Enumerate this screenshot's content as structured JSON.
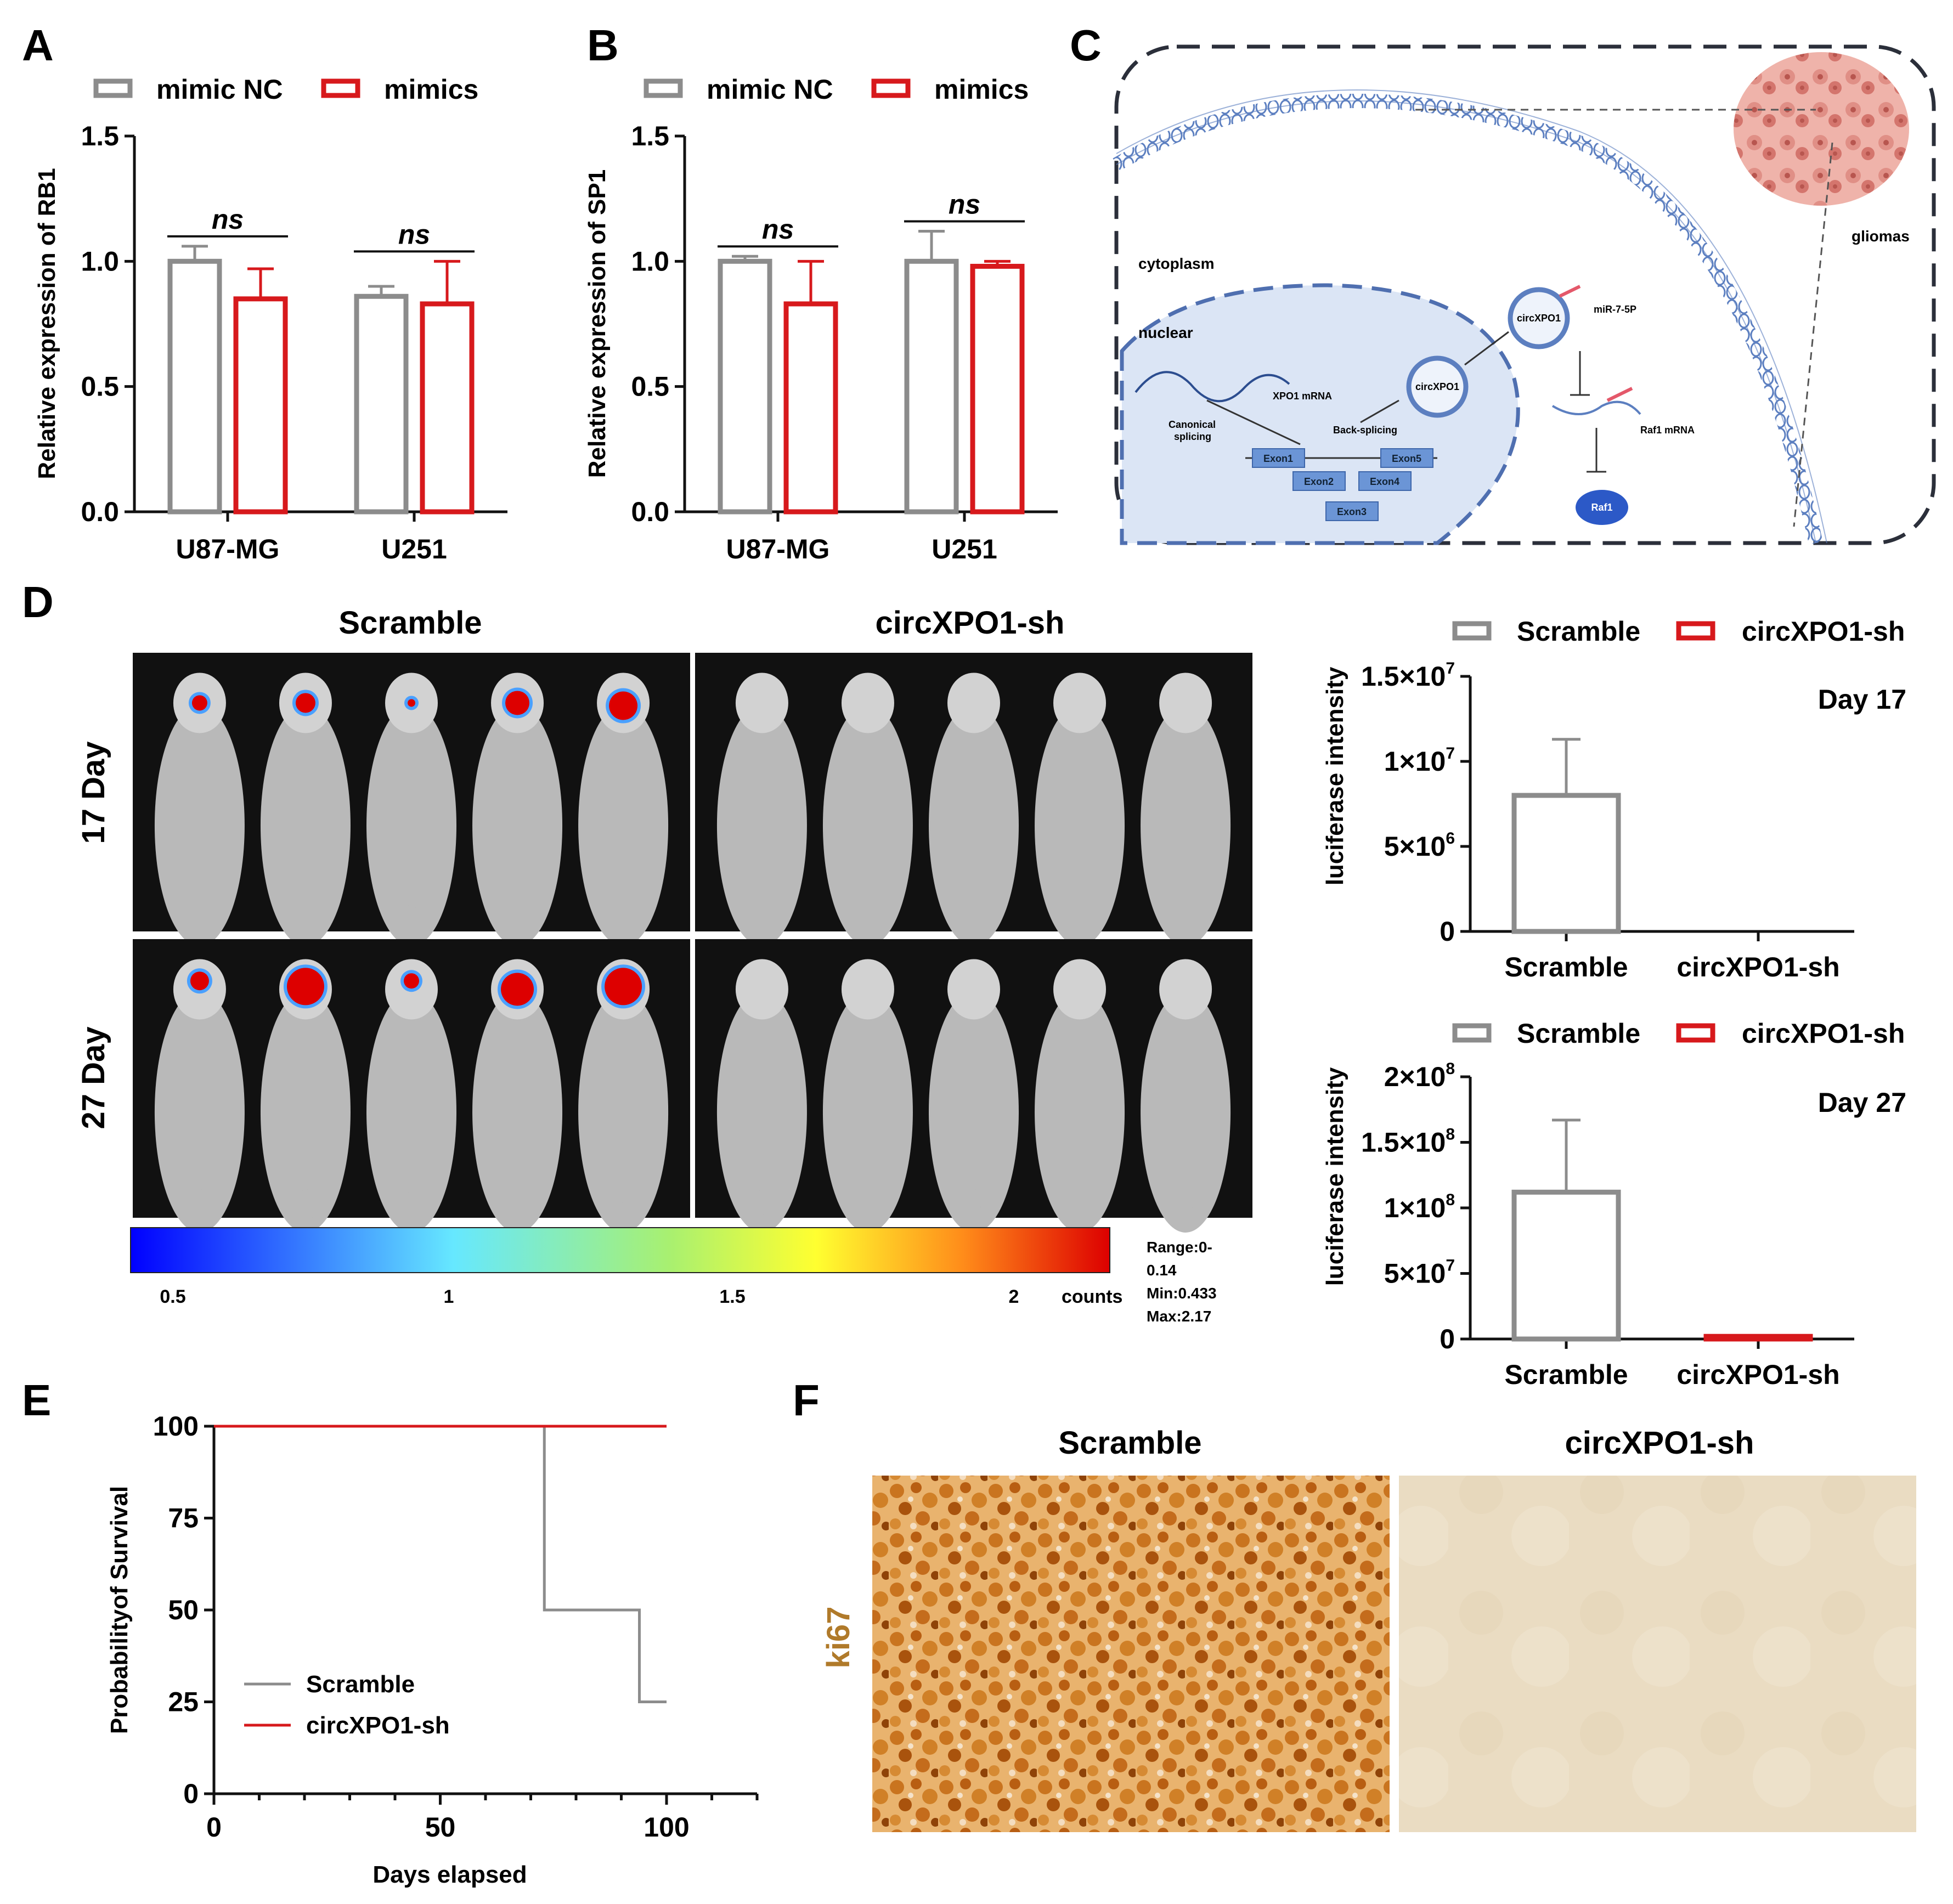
{
  "panel_labels": [
    "A",
    "B",
    "C",
    "D",
    "E",
    "F"
  ],
  "colors": {
    "gray": "#8c8c8c",
    "red": "#d7191c",
    "black": "#111111",
    "cell_blue": "#dbe5f5",
    "membrane": "#5c7fc0"
  },
  "chart_data": [
    {
      "id": "A",
      "type": "bar",
      "categories": [
        "U87-MG",
        "U251"
      ],
      "series": [
        {
          "name": "mimic NC",
          "values": [
            1.0,
            0.86
          ],
          "err": [
            0.06,
            0.04
          ]
        },
        {
          "name": "mimics",
          "values": [
            0.85,
            0.83
          ],
          "err": [
            0.12,
            0.17
          ]
        }
      ],
      "ylabel": "Relative expression of RB1",
      "ylim": [
        0,
        1.5
      ],
      "yticks": [
        "0.0",
        "0.5",
        "1.0",
        "1.5"
      ],
      "annotations": [
        "ns",
        "ns"
      ],
      "legend": "top"
    },
    {
      "id": "B",
      "type": "bar",
      "categories": [
        "U87-MG",
        "U251"
      ],
      "series": [
        {
          "name": "mimic NC",
          "values": [
            1.0,
            1.0
          ],
          "err": [
            0.02,
            0.12
          ]
        },
        {
          "name": "mimics",
          "values": [
            0.83,
            0.98
          ],
          "err": [
            0.17,
            0.02
          ]
        }
      ],
      "ylabel": "Relative expression of SP1",
      "ylim": [
        0,
        1.5
      ],
      "yticks": [
        "0.0",
        "0.5",
        "1.0",
        "1.5"
      ],
      "annotations": [
        "ns",
        "ns"
      ],
      "legend": "top"
    },
    {
      "id": "D-day17",
      "type": "bar",
      "categories": [
        "Scramble",
        "circXPO1-sh"
      ],
      "series": [
        {
          "name": "Scramble",
          "values": [
            8000000,
            0
          ],
          "err": [
            3300000,
            0
          ]
        },
        {
          "name": "circXPO1-sh",
          "values": [
            0,
            0
          ],
          "err": [
            0,
            0
          ]
        }
      ],
      "ylabel": "luciferase intensity",
      "ylim": [
        0,
        15000000
      ],
      "yticks": [
        "0",
        "5×10",
        "1×10",
        "1.5×10"
      ],
      "ytick_exponents": [
        "",
        "6",
        "7",
        "7"
      ],
      "annotation": "Day 17",
      "legend": "top"
    },
    {
      "id": "D-day27",
      "type": "bar",
      "categories": [
        "Scramble",
        "circXPO1-sh"
      ],
      "series": [
        {
          "name": "Scramble",
          "values": [
            112000000,
            0
          ],
          "err": [
            55000000,
            0
          ]
        },
        {
          "name": "circXPO1-sh",
          "values": [
            0,
            2000000
          ],
          "err": [
            0,
            0
          ]
        }
      ],
      "ylabel": "luciferase intensity",
      "ylim": [
        0,
        200000000
      ],
      "yticks": [
        "0",
        "5×10",
        "1×10",
        "1.5×10",
        "2×10"
      ],
      "ytick_exponents": [
        "",
        "7",
        "8",
        "8",
        "8"
      ],
      "annotation": "Day 27",
      "legend": "top"
    },
    {
      "id": "E",
      "type": "line",
      "series": [
        {
          "name": "Scramble",
          "x": [
            0,
            73,
            73,
            94,
            94,
            100
          ],
          "y": [
            100,
            100,
            50,
            50,
            25,
            25
          ]
        },
        {
          "name": "circXPO1-sh",
          "x": [
            0,
            100
          ],
          "y": [
            100,
            100
          ]
        }
      ],
      "xlabel": "Days elapsed",
      "ylabel": "Probabilityof Survival",
      "xlim": [
        0,
        120
      ],
      "ylim": [
        0,
        100
      ],
      "xticks": [
        "0",
        "50",
        "100"
      ],
      "yticks": [
        "0",
        "25",
        "50",
        "75",
        "100"
      ],
      "legend": "bottom-left"
    }
  ],
  "panel_c": {
    "cytoplasm": "cytoplasm",
    "nuclear": "nuclear",
    "gliomas": "gliomas",
    "xpo1_mrna": "XPO1 mRNA",
    "canonical": "Canonical",
    "splicing": "splicing",
    "back_splicing": "Back-splicing",
    "circ1": "circXPO1",
    "circ2": "circXPO1",
    "mir": "miR-7-5P",
    "raf1_mrna": "Raf1 mRNA",
    "raf1": "Raf1",
    "exons": [
      "Exon1",
      "Exon2",
      "Exon3",
      "Exon4",
      "Exon5"
    ]
  },
  "panel_d": {
    "group_left": "Scramble",
    "group_right": "circXPO1-sh",
    "row1": "17 Day",
    "row2": "27 Day",
    "scale_ticks": [
      "0.5",
      "1",
      "1.5",
      "2"
    ],
    "scale_unit": "counts",
    "range_lines": [
      "Range:0-",
      "0.14",
      "Min:0.433",
      "Max:2.17"
    ]
  },
  "panel_f": {
    "left": "Scramble",
    "right": "circXPO1-sh",
    "stain": "ki67"
  }
}
